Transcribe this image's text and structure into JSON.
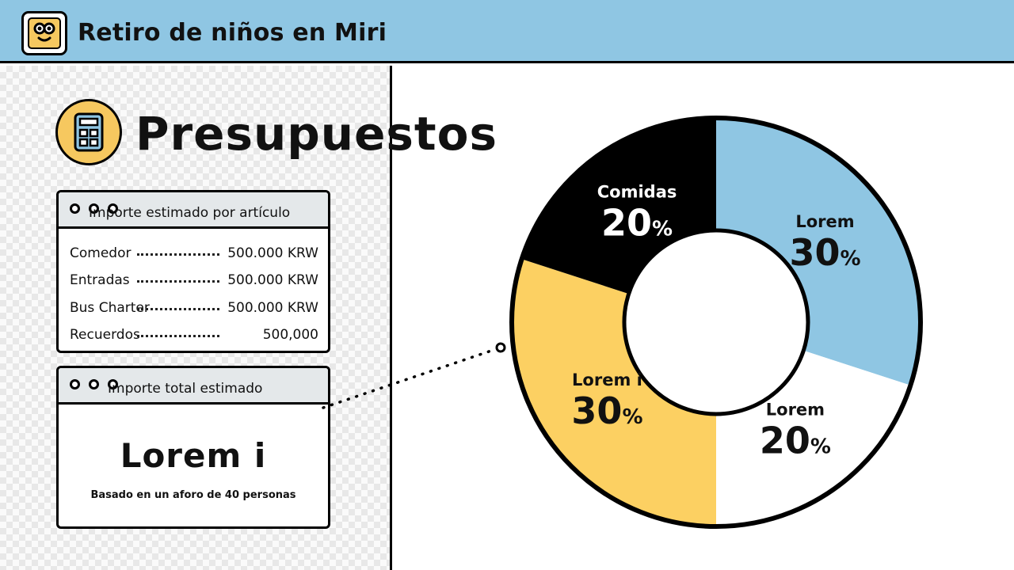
{
  "header": {
    "title": "Retiro de niños en Miri",
    "logo_icon": "mascot-face-icon"
  },
  "section": {
    "title": "Presupuestos",
    "icon": "calculator-icon"
  },
  "items_card": {
    "title": "Importe estimado por artículo",
    "rows": [
      {
        "label": "Comedor",
        "value": "500.000 KRW"
      },
      {
        "label": "Entradas",
        "value": "500.000 KRW"
      },
      {
        "label": "Bus Charter",
        "value": "500.000 KRW"
      },
      {
        "label": "Recuerdos",
        "value": "500,000"
      }
    ]
  },
  "total_card": {
    "title": "Importe total estimado",
    "amount": "Lorem i",
    "note": "Basado en un aforo de 40 personas"
  },
  "colors": {
    "accent_blue": "#8fc6e3",
    "accent_yellow": "#fcd062",
    "black": "#000000",
    "white": "#ffffff"
  },
  "chart_data": {
    "type": "pie",
    "donut": true,
    "slices": [
      {
        "label": "Lorem",
        "value": 30,
        "display": "30",
        "color": "#8fc6e3"
      },
      {
        "label": "Lorem",
        "value": 20,
        "display": "20",
        "color": "#ffffff"
      },
      {
        "label": "Lorem i",
        "value": 30,
        "display": "30",
        "color": "#fcd062"
      },
      {
        "label": "Comidas",
        "value": 20,
        "display": "20",
        "color": "#000000"
      }
    ],
    "unit": "%"
  }
}
